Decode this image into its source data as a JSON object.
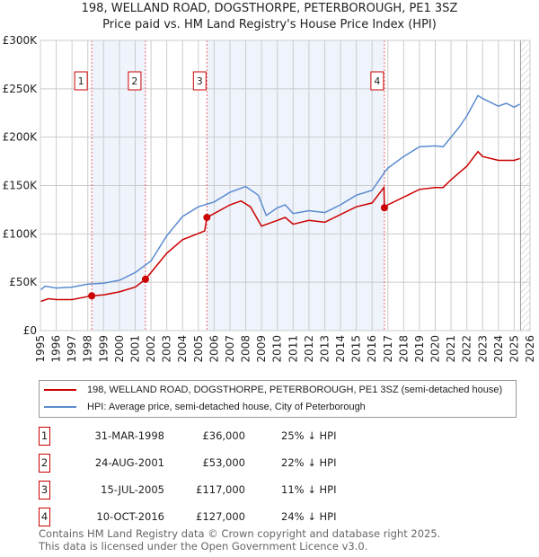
{
  "chart_data": {
    "type": "line",
    "title": "198, WELLAND ROAD, DOGSTHORPE, PETERBOROUGH, PE1 3SZ",
    "subtitle": "Price paid vs. HM Land Registry's House Price Index (HPI)",
    "xlim": [
      1995,
      2026
    ],
    "ylim": [
      0,
      300000
    ],
    "x_ticks": [
      "1995",
      "1996",
      "1997",
      "1998",
      "1999",
      "2000",
      "2001",
      "2002",
      "2003",
      "2004",
      "2005",
      "2006",
      "2007",
      "2008",
      "2009",
      "2010",
      "2011",
      "2012",
      "2013",
      "2014",
      "2015",
      "2016",
      "2017",
      "2018",
      "2019",
      "2020",
      "2021",
      "2022",
      "2023",
      "2024",
      "2025",
      "2026"
    ],
    "y_ticks": [
      {
        "v": 0,
        "label": "£0"
      },
      {
        "v": 50000,
        "label": "£50K"
      },
      {
        "v": 100000,
        "label": "£100K"
      },
      {
        "v": 150000,
        "label": "£150K"
      },
      {
        "v": 200000,
        "label": "£200K"
      },
      {
        "v": 250000,
        "label": "£250K"
      },
      {
        "v": 300000,
        "label": "£300K"
      }
    ],
    "grid": true,
    "series": [
      {
        "name": "198, WELLAND ROAD, DOGSTHORPE, PETERBOROUGH, PE1 3SZ (semi-detached house)",
        "color": "#cc0000",
        "x": [
          1995,
          1995.5,
          1996,
          1997,
          1998.25,
          1999,
          2000,
          2001,
          2001.65,
          2002,
          2003,
          2004,
          2005.4,
          2005.54,
          2006,
          2007,
          2007.7,
          2008.3,
          2009,
          2010,
          2010.5,
          2011,
          2012,
          2013,
          2014,
          2015,
          2016,
          2016.75,
          2016.78,
          2017,
          2018,
          2019,
          2020,
          2020.5,
          2021,
          2022,
          2022.7,
          2023,
          2024,
          2025,
          2025.35
        ],
        "y": [
          30000,
          33000,
          32000,
          32000,
          36000,
          37000,
          40000,
          45000,
          53000,
          60000,
          80000,
          94000,
          103000,
          117000,
          121000,
          130000,
          134000,
          128000,
          108000,
          114000,
          117000,
          110000,
          114000,
          112000,
          120000,
          128000,
          132000,
          148000,
          127000,
          130000,
          138000,
          146000,
          148000,
          148000,
          156000,
          170000,
          185000,
          180000,
          176000,
          176000,
          178000
        ]
      },
      {
        "name": "HPI: Average price, semi-detached house, City of Peterborough",
        "color": "#5b8bd0",
        "x": [
          1995,
          1995.3,
          1996,
          1997,
          1998,
          1999,
          2000,
          2001,
          2002,
          2003,
          2004,
          2005,
          2006,
          2007,
          2008,
          2008.8,
          2009.3,
          2010,
          2010.5,
          2011,
          2012,
          2013,
          2014,
          2015,
          2016,
          2016.8,
          2017,
          2018,
          2019,
          2020,
          2020.5,
          2021,
          2021.5,
          2022,
          2022.7,
          2023,
          2023.5,
          2024,
          2024.5,
          2025,
          2025.35
        ],
        "y": [
          42000,
          46000,
          44000,
          45000,
          48000,
          49000,
          52000,
          60000,
          72000,
          98000,
          118000,
          128000,
          133000,
          143000,
          149000,
          140000,
          119000,
          127000,
          130000,
          121000,
          124000,
          122000,
          130000,
          140000,
          145000,
          164000,
          168000,
          180000,
          190000,
          191000,
          190000,
          200000,
          210000,
          222000,
          243000,
          240000,
          236000,
          232000,
          235000,
          231000,
          234000
        ]
      }
    ],
    "sales": [
      {
        "id": "1",
        "x": 1998.25,
        "y": 36000,
        "date": "31-MAR-1998",
        "price": "£36,000",
        "hpi": "25% ↓ HPI"
      },
      {
        "id": "2",
        "x": 2001.65,
        "y": 53000,
        "date": "24-AUG-2001",
        "price": "£53,000",
        "hpi": "22% ↓ HPI"
      },
      {
        "id": "3",
        "x": 2005.54,
        "y": 117000,
        "date": "15-JUL-2005",
        "price": "£117,000",
        "hpi": "11% ↓ HPI"
      },
      {
        "id": "4",
        "x": 2016.78,
        "y": 127000,
        "date": "10-OCT-2016",
        "price": "£127,000",
        "hpi": "24% ↓ HPI"
      }
    ],
    "data_end": 2025.4,
    "legend_position": "below"
  },
  "footer": {
    "line1": "Contains HM Land Registry data © Crown copyright and database right 2025.",
    "line2": "This data is licensed under the Open Government Licence v3.0."
  }
}
